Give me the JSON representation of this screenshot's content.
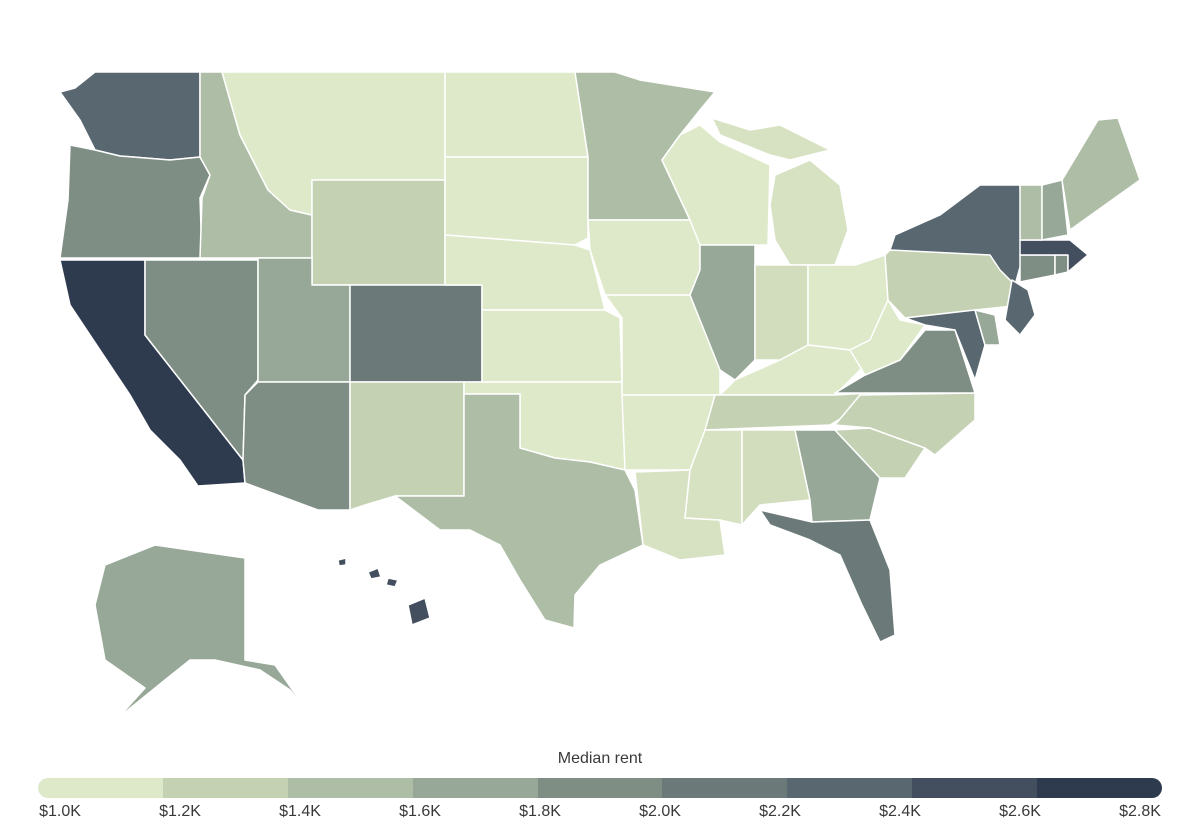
{
  "legend": {
    "title": "Median rent",
    "ticks": [
      "$1.0K",
      "$1.2K",
      "$1.4K",
      "$1.6K",
      "$1.8K",
      "$2.0K",
      "$2.2K",
      "$2.4K",
      "$2.6K",
      "$2.8K"
    ],
    "colors": [
      "#dde9c9",
      "#c4d1b3",
      "#aebda6",
      "#98a898",
      "#7f8e84",
      "#6b7a78",
      "#586770",
      "#434f5e",
      "#2e3b4f"
    ]
  },
  "states": [
    {
      "id": "WA",
      "color": "#586770"
    },
    {
      "id": "OR",
      "color": "#7f8e84"
    },
    {
      "id": "CA",
      "color": "#2e3b4f"
    },
    {
      "id": "ID",
      "color": "#aebda6"
    },
    {
      "id": "NV",
      "color": "#7f8e84"
    },
    {
      "id": "MT",
      "color": "#dde9c9"
    },
    {
      "id": "WY",
      "color": "#c4d1b3"
    },
    {
      "id": "UT",
      "color": "#98a898"
    },
    {
      "id": "CO",
      "color": "#6b7a78"
    },
    {
      "id": "AZ",
      "color": "#7f8e84"
    },
    {
      "id": "NM",
      "color": "#c4d1b3"
    },
    {
      "id": "ND",
      "color": "#dde9c9"
    },
    {
      "id": "SD",
      "color": "#dde9c9"
    },
    {
      "id": "NE",
      "color": "#dde9c9"
    },
    {
      "id": "KS",
      "color": "#dde9c9"
    },
    {
      "id": "OK",
      "color": "#dde9c9"
    },
    {
      "id": "TX",
      "color": "#aebda6"
    },
    {
      "id": "MN",
      "color": "#aebda6"
    },
    {
      "id": "IA",
      "color": "#dde9c9"
    },
    {
      "id": "MO",
      "color": "#dde9c9"
    },
    {
      "id": "AR",
      "color": "#dde9c9"
    },
    {
      "id": "LA",
      "color": "#d6e2c2"
    },
    {
      "id": "WI",
      "color": "#dde9c9"
    },
    {
      "id": "IL",
      "color": "#98a898"
    },
    {
      "id": "MI",
      "color": "#d6e2c2"
    },
    {
      "id": "IN",
      "color": "#d1ddbd"
    },
    {
      "id": "OH",
      "color": "#dde9c9"
    },
    {
      "id": "KY",
      "color": "#dde9c9"
    },
    {
      "id": "TN",
      "color": "#c4d1b3"
    },
    {
      "id": "MS",
      "color": "#d6e2c2"
    },
    {
      "id": "AL",
      "color": "#d1ddbd"
    },
    {
      "id": "GA",
      "color": "#98a898"
    },
    {
      "id": "FL",
      "color": "#6b7a78"
    },
    {
      "id": "SC",
      "color": "#c4d1b3"
    },
    {
      "id": "NC",
      "color": "#c4d1b3"
    },
    {
      "id": "VA",
      "color": "#7f8e84"
    },
    {
      "id": "WV",
      "color": "#dde9c9"
    },
    {
      "id": "PA",
      "color": "#c4d1b3"
    },
    {
      "id": "NY",
      "color": "#586770"
    },
    {
      "id": "NJ",
      "color": "#586770"
    },
    {
      "id": "MD",
      "color": "#586770"
    },
    {
      "id": "DE",
      "color": "#98a898"
    },
    {
      "id": "CT",
      "color": "#7f8e84"
    },
    {
      "id": "RI",
      "color": "#7f8e84"
    },
    {
      "id": "MA",
      "color": "#434f5e"
    },
    {
      "id": "VT",
      "color": "#aebda6"
    },
    {
      "id": "NH",
      "color": "#98a898"
    },
    {
      "id": "ME",
      "color": "#aebda6"
    },
    {
      "id": "AK",
      "color": "#98a898"
    },
    {
      "id": "HI",
      "color": "#434f5e"
    }
  ]
}
